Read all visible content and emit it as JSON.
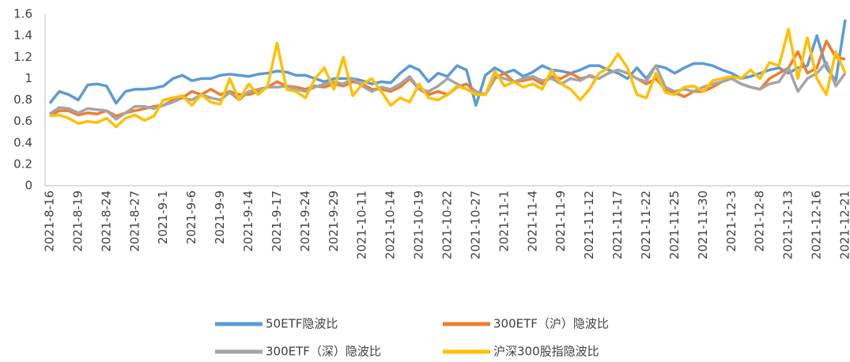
{
  "chart_data": {
    "type": "line",
    "categories": [
      "2021-8-16",
      null,
      null,
      "2021-8-19",
      null,
      null,
      "2021-8-24",
      null,
      null,
      "2021-8-27",
      null,
      null,
      "2021-9-1",
      null,
      null,
      "2021-9-6",
      null,
      null,
      "2021-9-9",
      null,
      null,
      "2021-9-14",
      null,
      null,
      "2021-9-17",
      null,
      null,
      "2021-9-24",
      null,
      null,
      "2021-9-29",
      null,
      null,
      "2021-10-11",
      null,
      null,
      "2021-10-14",
      null,
      null,
      "2021-10-19",
      null,
      null,
      "2021-10-22",
      null,
      null,
      "2021-10-27",
      null,
      null,
      "2021-11-1",
      null,
      null,
      "2021-11-4",
      null,
      null,
      "2021-11-9",
      null,
      null,
      "2021-11-12",
      null,
      null,
      "2021-11-17",
      null,
      null,
      "2021-11-22",
      null,
      null,
      "2021-11-25",
      null,
      null,
      "2021-11-30",
      null,
      null,
      "2021-12-3",
      null,
      null,
      "2021-12-8",
      null,
      null,
      "2021-12-13",
      null,
      null,
      "2021-12-16",
      null,
      null,
      "2021-12-21"
    ],
    "ylim": [
      0,
      1.6
    ],
    "yticks": [
      0,
      0.2,
      0.4,
      0.6,
      0.8,
      1,
      1.2,
      1.4,
      1.6
    ],
    "grid": false,
    "series": [
      {
        "name": "50ETF隐波比",
        "color": "#5b9bd5",
        "values": [
          0.77,
          0.88,
          0.85,
          0.8,
          0.94,
          0.95,
          0.93,
          0.77,
          0.88,
          0.9,
          0.9,
          0.91,
          0.93,
          1.0,
          1.03,
          0.98,
          1.0,
          1.0,
          1.03,
          1.04,
          1.03,
          1.02,
          1.04,
          1.05,
          1.07,
          1.06,
          1.03,
          1.03,
          1.0,
          0.97,
          1.0,
          1.0,
          1.0,
          0.98,
          0.95,
          0.97,
          0.96,
          1.05,
          1.12,
          1.08,
          0.97,
          1.05,
          1.02,
          1.12,
          1.08,
          0.75,
          1.03,
          1.1,
          1.05,
          1.08,
          1.02,
          1.06,
          1.12,
          1.08,
          1.07,
          1.05,
          1.08,
          1.12,
          1.12,
          1.08,
          1.05,
          1.0,
          1.1,
          1.0,
          1.12,
          1.1,
          1.05,
          1.1,
          1.14,
          1.14,
          1.12,
          1.08,
          1.05,
          1.0,
          1.02,
          1.05,
          1.08,
          1.1,
          1.05,
          1.1,
          1.12,
          1.4,
          1.1,
          0.98,
          1.55
        ]
      },
      {
        "name": "300ETF（沪）隐波比",
        "color": "#ed7d31",
        "values": [
          0.65,
          0.7,
          0.7,
          0.66,
          0.68,
          0.67,
          0.7,
          0.65,
          0.68,
          0.7,
          0.72,
          0.74,
          0.75,
          0.8,
          0.82,
          0.88,
          0.85,
          0.9,
          0.85,
          0.88,
          0.85,
          0.85,
          0.88,
          0.92,
          0.97,
          0.93,
          0.92,
          0.9,
          0.93,
          0.92,
          0.95,
          0.93,
          0.97,
          0.95,
          0.9,
          0.9,
          0.88,
          0.92,
          1.0,
          0.9,
          0.85,
          0.88,
          0.85,
          0.92,
          0.95,
          0.88,
          0.85,
          1.0,
          1.05,
          0.97,
          0.98,
          1.0,
          0.95,
          1.02,
          1.0,
          1.05,
          1.0,
          1.02,
          1.0,
          1.05,
          1.08,
          1.05,
          1.0,
          0.95,
          1.0,
          0.9,
          0.87,
          0.83,
          0.88,
          0.88,
          0.92,
          0.97,
          1.0,
          0.95,
          0.92,
          0.9,
          1.0,
          1.05,
          1.1,
          1.25,
          1.05,
          1.1,
          1.35,
          1.2,
          1.18
        ]
      },
      {
        "name": "300ETF（深）隐波比",
        "color": "#a5a5a5",
        "values": [
          0.67,
          0.73,
          0.72,
          0.68,
          0.72,
          0.71,
          0.7,
          0.62,
          0.68,
          0.74,
          0.74,
          0.72,
          0.75,
          0.78,
          0.82,
          0.8,
          0.85,
          0.82,
          0.8,
          0.87,
          0.8,
          0.88,
          0.9,
          0.92,
          0.92,
          0.93,
          0.9,
          0.88,
          0.92,
          0.95,
          0.97,
          0.95,
          1.0,
          0.93,
          0.88,
          0.92,
          0.9,
          0.95,
          1.02,
          0.9,
          0.88,
          0.93,
          1.0,
          0.95,
          0.9,
          0.88,
          0.85,
          1.02,
          1.0,
          0.97,
          1.0,
          1.02,
          0.98,
          1.0,
          0.95,
          1.0,
          0.98,
          1.03,
          1.0,
          1.05,
          1.08,
          1.05,
          1.0,
          0.97,
          1.12,
          0.92,
          0.88,
          0.9,
          0.88,
          0.92,
          0.95,
          0.97,
          1.0,
          0.95,
          0.92,
          0.9,
          0.95,
          0.97,
          1.1,
          0.88,
          1.0,
          1.05,
          1.15,
          0.93,
          1.05
        ]
      },
      {
        "name": "沪深300股指隐波比",
        "color": "#ffc000",
        "values": [
          0.65,
          0.66,
          0.63,
          0.58,
          0.6,
          0.59,
          0.63,
          0.55,
          0.63,
          0.66,
          0.61,
          0.65,
          0.8,
          0.82,
          0.84,
          0.75,
          0.85,
          0.78,
          0.76,
          1.0,
          0.8,
          0.95,
          0.85,
          0.93,
          1.33,
          0.9,
          0.88,
          0.82,
          1.0,
          1.1,
          0.9,
          1.2,
          0.84,
          0.95,
          1.0,
          0.88,
          0.75,
          0.82,
          0.78,
          0.95,
          0.82,
          0.8,
          0.85,
          0.93,
          0.9,
          0.85,
          0.85,
          1.07,
          0.93,
          0.97,
          0.92,
          0.95,
          0.9,
          1.08,
          0.95,
          0.9,
          0.8,
          0.9,
          1.05,
          1.1,
          1.23,
          1.1,
          0.85,
          0.82,
          1.05,
          0.87,
          0.85,
          0.92,
          0.93,
          0.88,
          0.98,
          1.0,
          1.02,
          1.0,
          1.08,
          1.0,
          1.15,
          1.12,
          1.46,
          1.0,
          1.38,
          1.0,
          0.85,
          1.25,
          1.05
        ]
      }
    ]
  }
}
